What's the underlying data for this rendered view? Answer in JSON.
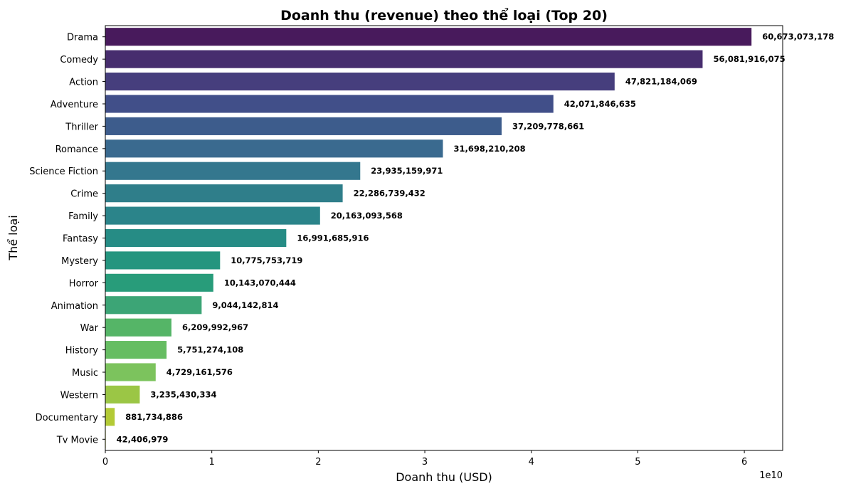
{
  "chart_data": {
    "type": "bar",
    "orientation": "horizontal",
    "title": "Doanh thu (revenue) theo thể loại (Top 20)",
    "xlabel": "Doanh thu (USD)",
    "ylabel": "Thể loại",
    "x_scale_label": "1e10",
    "xlim": [
      0,
      6.36
    ],
    "x_ticks": [
      "0",
      "1",
      "2",
      "3",
      "4",
      "5",
      "6"
    ],
    "grid": false,
    "legend": false,
    "categories": [
      "Drama",
      "Comedy",
      "Action",
      "Adventure",
      "Thriller",
      "Romance",
      "Science Fiction",
      "Crime",
      "Family",
      "Fantasy",
      "Mystery",
      "Horror",
      "Animation",
      "War",
      "History",
      "Music",
      "Western",
      "Documentary",
      "Tv Movie"
    ],
    "values": [
      60673073178,
      56081916075,
      47821184069,
      42071846635,
      37209778661,
      31698210208,
      23935159971,
      22286739432,
      20163093568,
      16991685916,
      10775753719,
      10143070444,
      9044142814,
      6209992967,
      5751274108,
      4729161576,
      3235430334,
      881734886,
      42406979
    ],
    "value_labels": [
      "60,673,073,178",
      "56,081,916,075",
      "47,821,184,069",
      "42,071,846,635",
      "37,209,778,661",
      "31,698,210,208",
      "23,935,159,971",
      "22,286,739,432",
      "20,163,093,568",
      "16,991,685,916",
      "10,775,753,719",
      "10,143,070,444",
      "9,044,142,814",
      "6,209,992,967",
      "5,751,274,108",
      "4,729,161,576",
      "3,235,430,334",
      "881,734,886",
      "42,406,979"
    ],
    "colors": [
      "#481a5c",
      "#472d6e",
      "#463e7d",
      "#414f89",
      "#3d5c8c",
      "#3a6a8f",
      "#34778e",
      "#2f7e8a",
      "#2b848a",
      "#268c85",
      "#25957f",
      "#289c7a",
      "#3ca576",
      "#55b567",
      "#66bd62",
      "#7cc35d",
      "#9bc645",
      "#b3ca35",
      "#c9d12a"
    ]
  }
}
